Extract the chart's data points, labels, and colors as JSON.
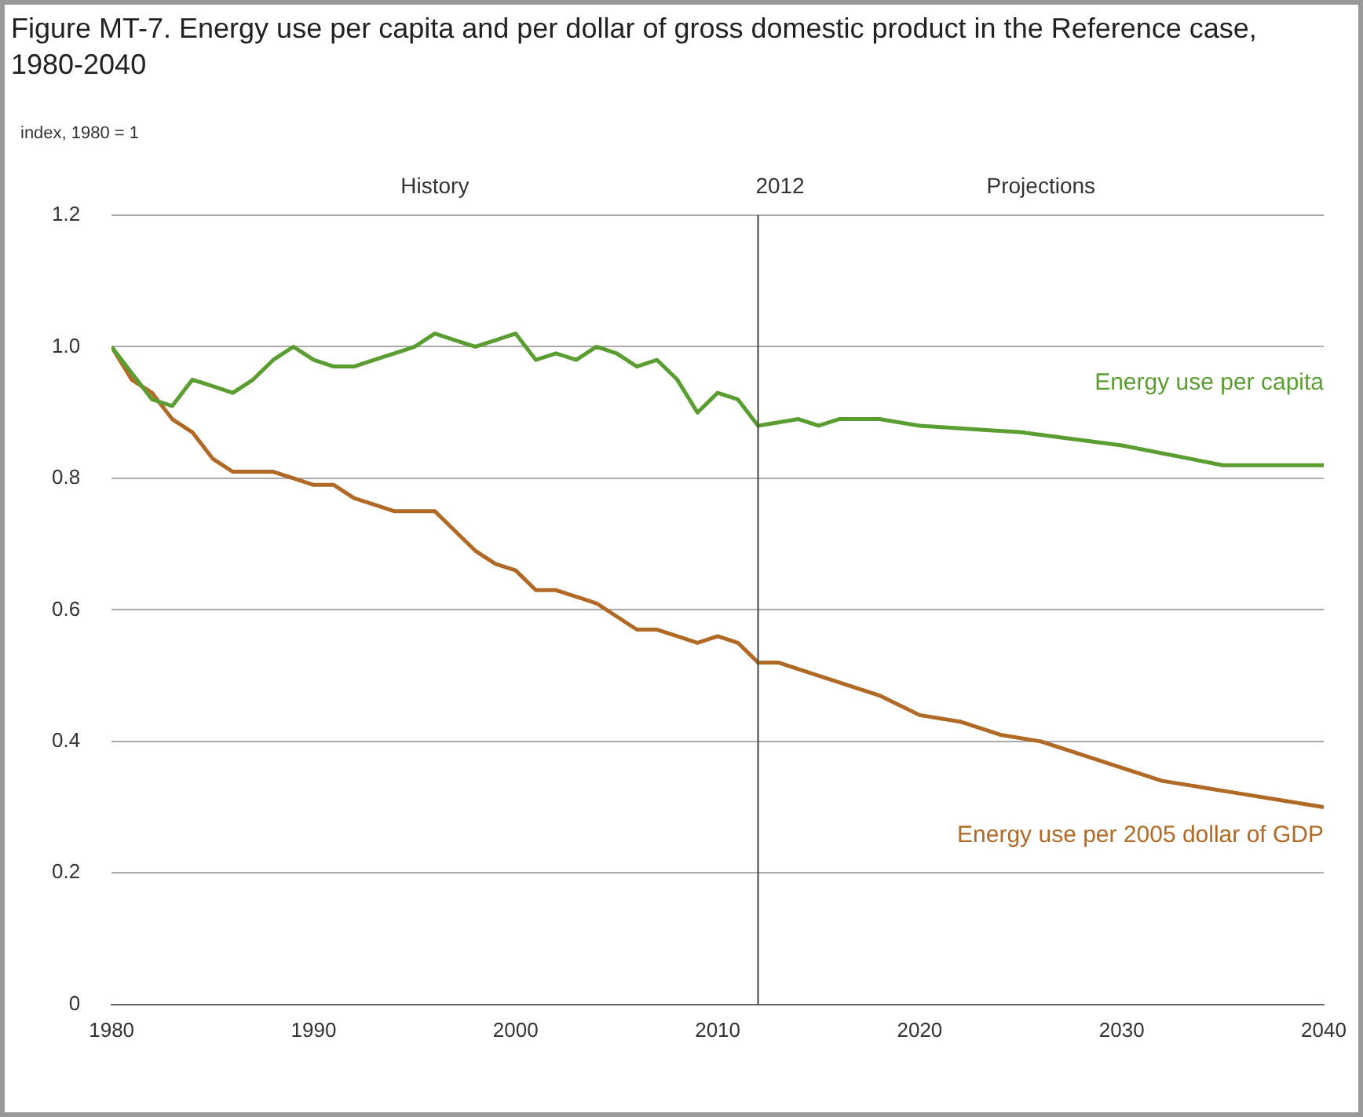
{
  "chart_data": {
    "type": "line",
    "title": "Figure MT-7. Energy use per capita and per dollar of gross domestic product in the Reference case, 1980-2040",
    "ylabel": "index, 1980 = 1",
    "series": [
      {
        "name": "Energy use per capita",
        "color": "#5a9e32",
        "x": [
          1980,
          1981,
          1982,
          1983,
          1984,
          1985,
          1986,
          1987,
          1988,
          1989,
          1990,
          1991,
          1992,
          1993,
          1994,
          1995,
          1996,
          1997,
          1998,
          1999,
          2000,
          2001,
          2002,
          2003,
          2004,
          2005,
          2006,
          2007,
          2008,
          2009,
          2010,
          2011,
          2012,
          2014,
          2015,
          2016,
          2018,
          2020,
          2025,
          2030,
          2035,
          2037,
          2038,
          2040
        ],
        "values": [
          1.0,
          0.96,
          0.92,
          0.91,
          0.95,
          0.94,
          0.93,
          0.95,
          0.98,
          1.0,
          0.98,
          0.97,
          0.97,
          0.98,
          0.99,
          1.0,
          1.02,
          1.01,
          1.0,
          1.01,
          1.02,
          0.98,
          0.99,
          0.98,
          1.0,
          0.99,
          0.97,
          0.98,
          0.95,
          0.9,
          0.93,
          0.92,
          0.88,
          0.89,
          0.88,
          0.89,
          0.89,
          0.88,
          0.87,
          0.85,
          0.82,
          0.82,
          0.82,
          0.82
        ]
      },
      {
        "name": "Energy use per 2005 dollar of GDP",
        "color": "#b06a26",
        "x": [
          1980,
          1981,
          1982,
          1983,
          1984,
          1985,
          1986,
          1987,
          1988,
          1989,
          1990,
          1991,
          1992,
          1993,
          1994,
          1995,
          1996,
          1997,
          1998,
          1999,
          2000,
          2001,
          2002,
          2003,
          2004,
          2005,
          2006,
          2007,
          2008,
          2009,
          2010,
          2011,
          2012,
          2013,
          2014,
          2016,
          2018,
          2020,
          2022,
          2024,
          2026,
          2028,
          2030,
          2032,
          2034,
          2036,
          2038,
          2040
        ],
        "values": [
          1.0,
          0.95,
          0.93,
          0.89,
          0.87,
          0.83,
          0.81,
          0.81,
          0.81,
          0.8,
          0.79,
          0.79,
          0.77,
          0.76,
          0.75,
          0.75,
          0.75,
          0.72,
          0.69,
          0.67,
          0.66,
          0.63,
          0.63,
          0.62,
          0.61,
          0.59,
          0.57,
          0.57,
          0.56,
          0.55,
          0.56,
          0.55,
          0.52,
          0.52,
          0.51,
          0.49,
          0.47,
          0.44,
          0.43,
          0.41,
          0.4,
          0.38,
          0.36,
          0.34,
          0.33,
          0.32,
          0.31,
          0.3
        ]
      }
    ],
    "xlim": [
      1980,
      2040
    ],
    "xticks": [
      1980,
      1990,
      2000,
      2010,
      2020,
      2030,
      2040
    ],
    "ylim": [
      0,
      1.2
    ],
    "yticks": [
      0,
      0.2,
      0.4,
      0.6,
      0.8,
      {
        "value": 1,
        "label": "1.0"
      },
      1.2
    ],
    "grid": "y",
    "legend": false,
    "marker": "none",
    "line_style": "solid",
    "ref_lines": [
      {
        "axis": "x",
        "value": 2012,
        "label": "2012",
        "color": "#404040"
      }
    ],
    "annotations": [
      "History",
      "Projections"
    ]
  }
}
